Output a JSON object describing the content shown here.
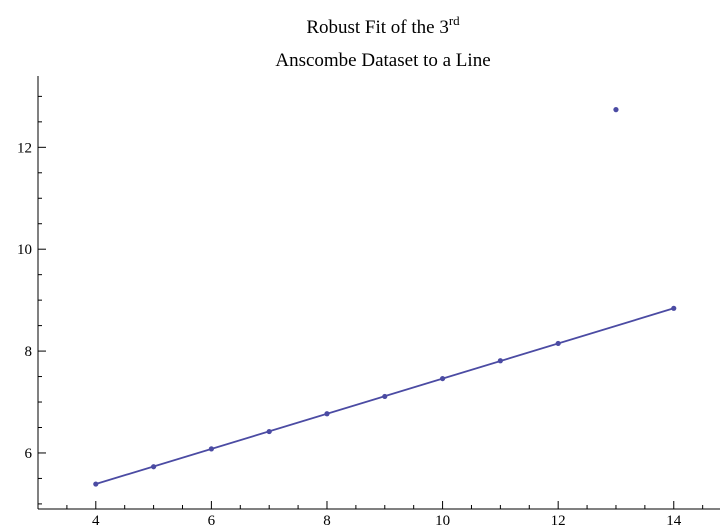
{
  "chart_data": {
    "type": "scatter",
    "title_line1_main": "Robust Fit of the 3",
    "title_line1_sup": "rd",
    "title_line2": "Anscombe Dataset to a Line",
    "xlabel": "",
    "ylabel": "",
    "xlim": [
      3,
      14.8
    ],
    "ylim": [
      4.9,
      13.4
    ],
    "x_ticks": [
      4,
      6,
      8,
      10,
      12,
      14
    ],
    "y_ticks": [
      6,
      8,
      10,
      12
    ],
    "x_minor_step": 0.5,
    "y_minor_step": 0.5,
    "grid": false,
    "colors": {
      "series": "#4b4ba3",
      "axis": "#000000"
    },
    "series": [
      {
        "type": "scatter",
        "x": [
          4,
          5,
          6,
          7,
          8,
          9,
          10,
          11,
          12,
          13,
          14
        ],
        "y": [
          5.39,
          5.73,
          6.08,
          6.42,
          6.77,
          7.11,
          7.46,
          7.81,
          8.15,
          12.74,
          8.84
        ]
      },
      {
        "type": "line",
        "x": [
          4,
          14
        ],
        "y": [
          5.39,
          8.84
        ]
      }
    ]
  }
}
